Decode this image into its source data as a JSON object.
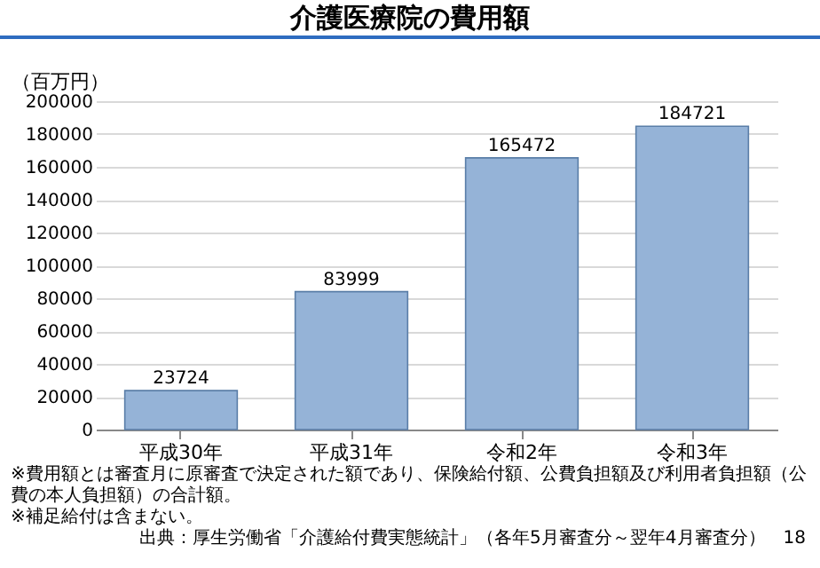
{
  "chart_data": {
    "type": "bar",
    "title": "介護医療院の費用額",
    "ylabel": "（百万円）",
    "categories": [
      "平成30年",
      "平成31年",
      "令和2年",
      "令和3年"
    ],
    "values": [
      23724,
      83999,
      165472,
      184721
    ],
    "color": "#95b3d7",
    "ylim": [
      0,
      200000
    ],
    "yticks": [
      0,
      20000,
      40000,
      60000,
      80000,
      100000,
      120000,
      140000,
      160000,
      180000,
      200000
    ],
    "grid": "y",
    "data_labels": true,
    "annotations": [
      "※費用額とは審査月に原審査で決定された額であり、保険給付額、公費負担額及び利用者負担額（公費の本人負担額）の合計額。",
      "※補足給付は含まない。",
      "出典：厚生労働省「介護給付費実態統計」（各年5月審査分～翌年4月審査分）",
      "18"
    ]
  }
}
